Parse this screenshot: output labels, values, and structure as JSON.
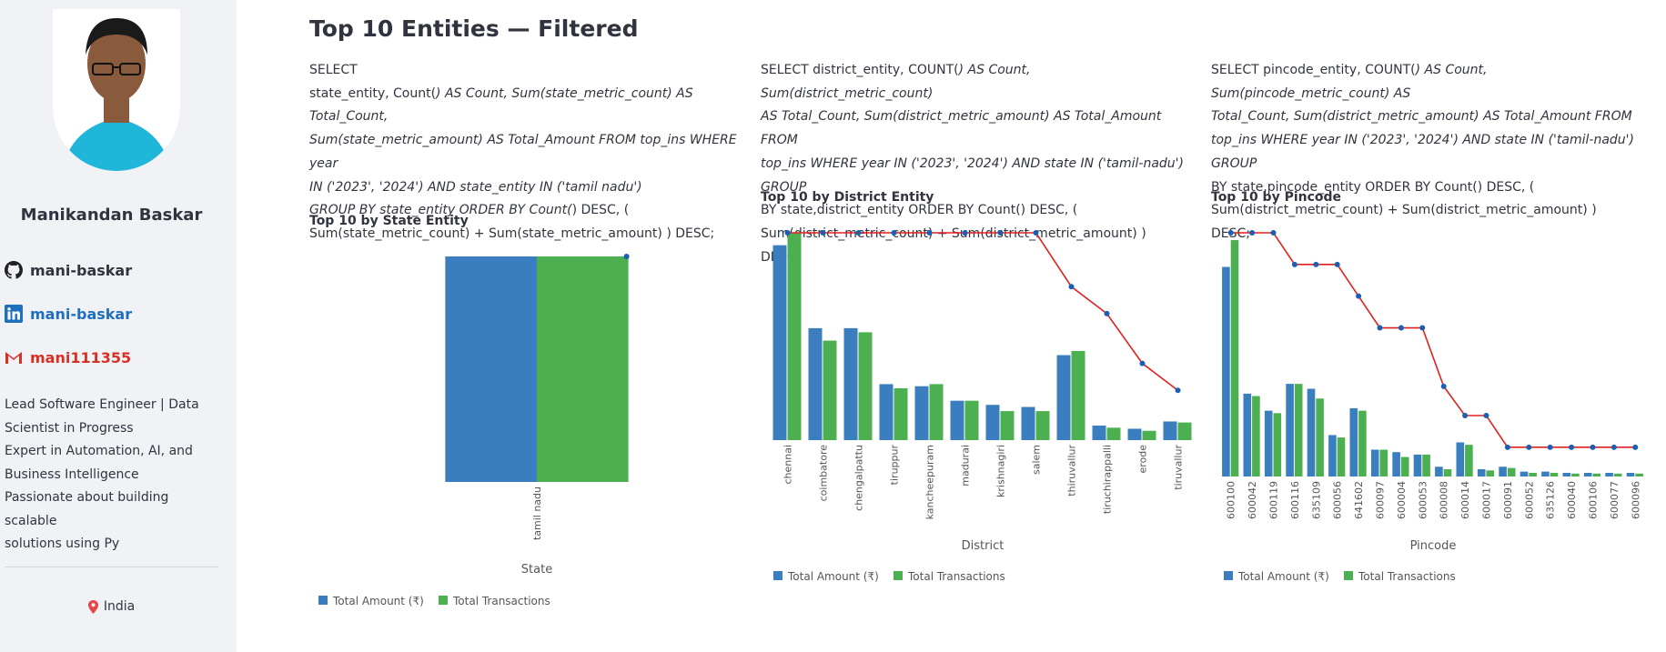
{
  "sidebar": {
    "name": "Manikandan Baskar",
    "links": [
      {
        "icon": "github-icon",
        "text": "mani-baskar"
      },
      {
        "icon": "linkedin-icon",
        "text": "mani-baskar"
      },
      {
        "icon": "gmail-icon",
        "text": "mani111355"
      }
    ],
    "bio": [
      "Lead Software Engineer | Data",
      "Scientist in Progress",
      "Expert in Automation, AI, and",
      "Business Intelligence",
      "Passionate about building scalable",
      "solutions using Py"
    ],
    "location": "India"
  },
  "main": {
    "title": "Top 10 Entities — Filtered"
  },
  "colors": {
    "amount": "#3a7ebf",
    "transactions": "#4caf50",
    "line": "#e02020",
    "marker": "#1a5fb4"
  },
  "chart_data": [
    {
      "type": "bar",
      "subtitle": "Top 10 by State Entity",
      "sql": [
        [
          "SELECT",
          ""
        ],
        [
          "state_entity, Count(",
          ") AS Count, Sum(state_metric_count) AS Total_Count,"
        ],
        [
          "",
          "Sum(state_metric_amount) AS Total_Amount FROM top_ins WHERE year"
        ],
        [
          "",
          "IN ('2023', '2024') AND state_entity IN ('tamil nadu')"
        ],
        [
          "",
          "GROUP BY state_entity ORDER BY Count(",
          ") DESC, ("
        ],
        [
          "Sum(state_metric_count) + Sum(state_metric_amount) ) DESC;",
          ""
        ]
      ],
      "categories": [
        "tamil nadu"
      ],
      "series": [
        {
          "name": "Total Amount (₹)",
          "values": [
            1.0
          ]
        },
        {
          "name": "Total Transactions",
          "values": [
            1.0
          ]
        }
      ],
      "line": [
        1.0
      ],
      "xlabel": "State"
    },
    {
      "type": "bar",
      "subtitle": "Top 10 by District Entity",
      "categories": [
        "chennai",
        "coimbatore",
        "chengalpattu",
        "tiruppur",
        "kancheepuram",
        "madurai",
        "krishnagiri",
        "salem",
        "thiruvallur",
        "tiruchirappalli",
        "erode",
        "tiruvallur"
      ],
      "series": [
        {
          "name": "Total Amount (₹)",
          "values": [
            0.94,
            0.54,
            0.54,
            0.27,
            0.26,
            0.19,
            0.17,
            0.16,
            0.41,
            0.07,
            0.055,
            0.09
          ]
        },
        {
          "name": "Total Transactions",
          "values": [
            1.0,
            0.48,
            0.52,
            0.25,
            0.27,
            0.19,
            0.14,
            0.14,
            0.43,
            0.06,
            0.045,
            0.085
          ]
        }
      ],
      "line": [
        1.0,
        1.0,
        1.0,
        1.0,
        1.0,
        1.0,
        1.0,
        1.0,
        0.74,
        0.61,
        0.37,
        0.24
      ],
      "xlabel": "District"
    },
    {
      "type": "bar",
      "subtitle": "Top 10 by Pincode",
      "categories": [
        "600100",
        "600042",
        "600119",
        "600116",
        "635109",
        "600056",
        "641602",
        "600097",
        "600004",
        "600053",
        "600008",
        "600014",
        "600017",
        "600091",
        "600052",
        "635126",
        "600040",
        "600106",
        "600077",
        "600096"
      ],
      "series": [
        {
          "name": "Total Amount (₹)",
          "values": [
            0.86,
            0.34,
            0.27,
            0.38,
            0.36,
            0.17,
            0.28,
            0.11,
            0.1,
            0.09,
            0.04,
            0.14,
            0.03,
            0.04,
            0.02,
            0.02,
            0.015,
            0.015,
            0.015,
            0.015
          ]
        },
        {
          "name": "Total Transactions",
          "values": [
            0.97,
            0.33,
            0.26,
            0.38,
            0.32,
            0.16,
            0.27,
            0.11,
            0.08,
            0.09,
            0.03,
            0.13,
            0.025,
            0.035,
            0.015,
            0.015,
            0.012,
            0.012,
            0.012,
            0.012
          ]
        }
      ],
      "line": [
        1.0,
        1.0,
        1.0,
        0.87,
        0.87,
        0.87,
        0.74,
        0.61,
        0.61,
        0.61,
        0.37,
        0.25,
        0.25,
        0.12,
        0.12,
        0.12,
        0.12,
        0.12,
        0.12,
        0.12
      ],
      "xlabel": "Pincode"
    }
  ],
  "sql_district": [
    "SELECT district_entity, COUNT(",
    ") AS Count, Sum(district_metric_count)",
    "AS Total_Count, Sum(district_metric_amount) AS Total_Amount FROM",
    "top_ins WHERE year IN ('2023', '2024') AND state IN ('tamil-nadu') GROUP",
    "BY state,district_entity ORDER BY Count(",
    ") DESC, (",
    "Sum(district_metric_count) + Sum(district_metric_amount) ) DESC;"
  ],
  "sql_pincode": [
    "SELECT pincode_entity, COUNT(",
    ") AS Count, Sum(pincode_metric_count) AS",
    "Total_Count, Sum(district_metric_amount) AS Total_Amount FROM",
    "top_ins WHERE year IN ('2023', '2024') AND state IN ('tamil-nadu') GROUP",
    "BY state,pincode_entity ORDER BY Count(",
    ") DESC, (",
    "Sum(district_metric_count) + Sum(district_metric_amount) ) DESC;"
  ]
}
